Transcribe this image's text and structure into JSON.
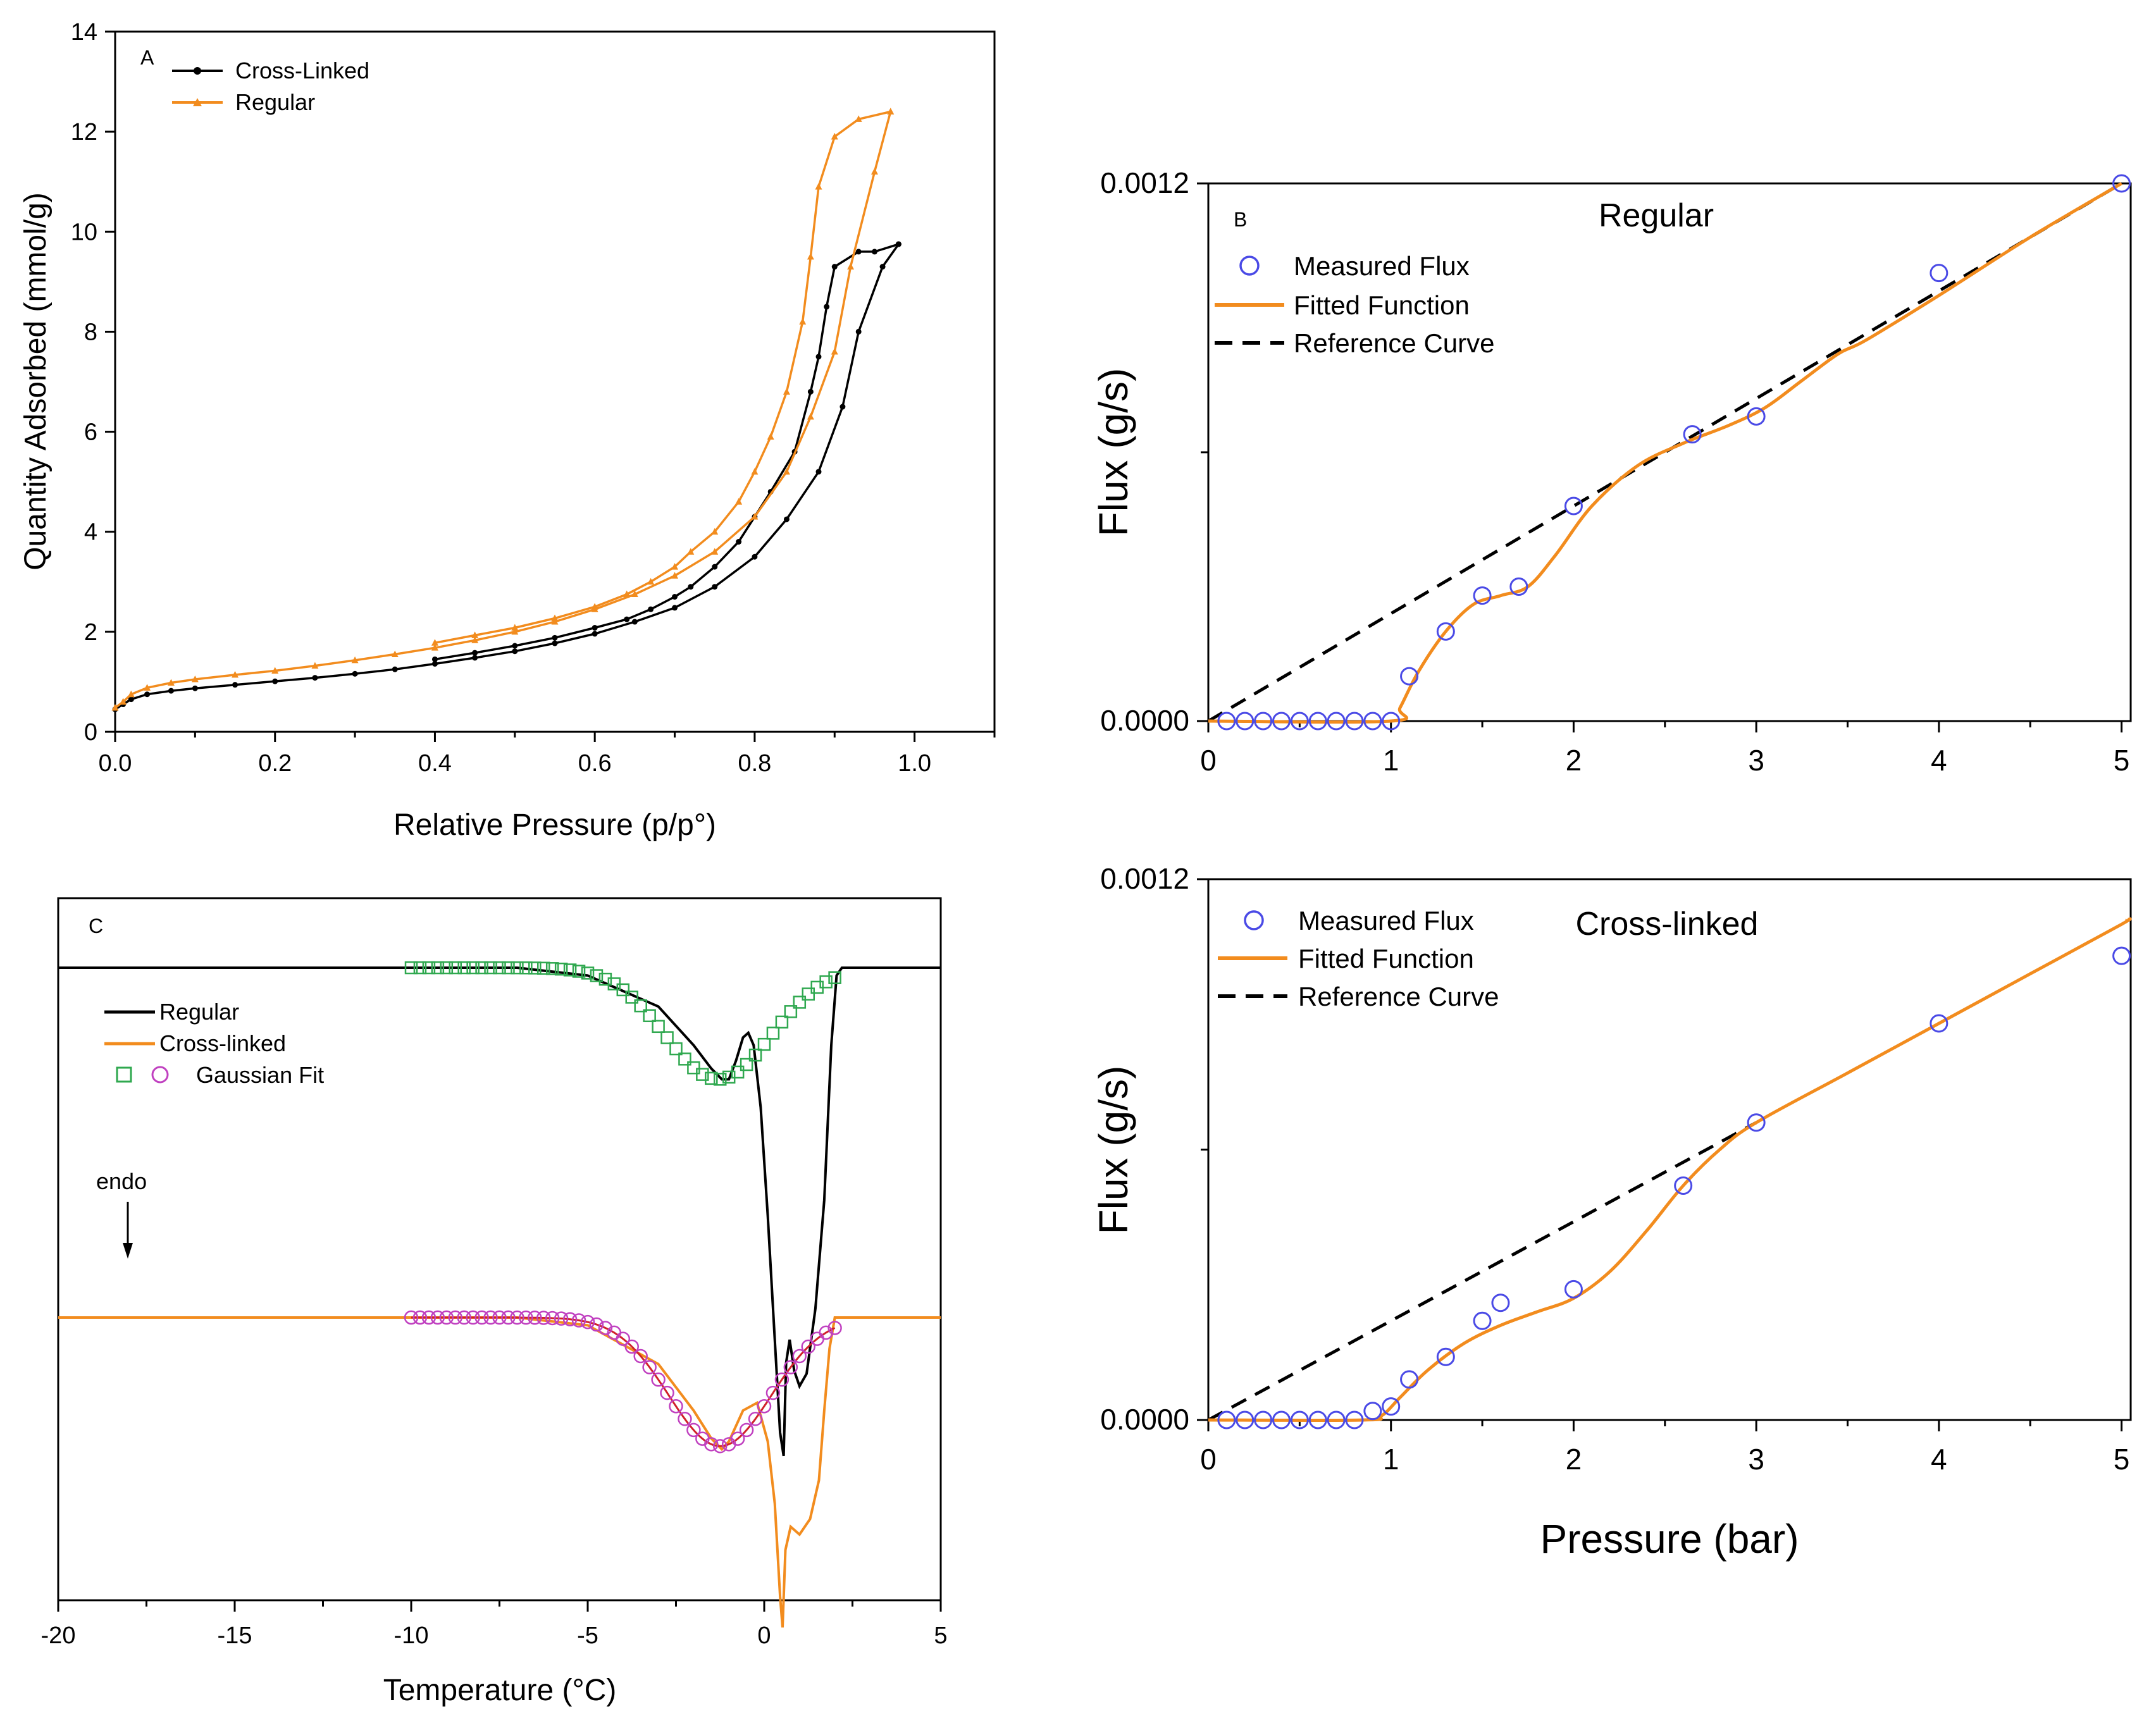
{
  "chart_data": [
    {
      "panel": "A",
      "type": "line",
      "xlabel": "Relative Pressure (p/p°)",
      "ylabel": "Quantity Adsorbed (mmol/g)",
      "xlim": [
        0,
        1.1
      ],
      "ylim": [
        0,
        14
      ],
      "xticks": [
        "0.0",
        "0.2",
        "0.4",
        "0.6",
        "0.8",
        "1.0"
      ],
      "yticks": [
        "0",
        "2",
        "4",
        "6",
        "8",
        "10",
        "12",
        "14"
      ],
      "legend": [
        "Cross-Linked",
        "Regular"
      ],
      "colors": {
        "Cross-Linked": "#000000",
        "Regular": "#f28c1e"
      },
      "series": [
        {
          "name": "Cross-Linked",
          "adsorption": [
            [
              0.0,
              0.45
            ],
            [
              0.01,
              0.55
            ],
            [
              0.02,
              0.65
            ],
            [
              0.04,
              0.75
            ],
            [
              0.07,
              0.82
            ],
            [
              0.1,
              0.87
            ],
            [
              0.15,
              0.94
            ],
            [
              0.2,
              1.01
            ],
            [
              0.25,
              1.08
            ],
            [
              0.3,
              1.16
            ],
            [
              0.35,
              1.25
            ],
            [
              0.4,
              1.36
            ],
            [
              0.45,
              1.48
            ],
            [
              0.5,
              1.61
            ],
            [
              0.55,
              1.77
            ],
            [
              0.6,
              1.96
            ],
            [
              0.65,
              2.2
            ],
            [
              0.7,
              2.48
            ],
            [
              0.75,
              2.9
            ],
            [
              0.8,
              3.5
            ],
            [
              0.84,
              4.25
            ],
            [
              0.88,
              5.2
            ],
            [
              0.91,
              6.5
            ],
            [
              0.93,
              8.0
            ],
            [
              0.96,
              9.3
            ],
            [
              0.98,
              9.75
            ]
          ],
          "desorption": [
            [
              0.98,
              9.75
            ],
            [
              0.95,
              9.6
            ],
            [
              0.93,
              9.6
            ],
            [
              0.9,
              9.3
            ],
            [
              0.89,
              8.5
            ],
            [
              0.88,
              7.5
            ],
            [
              0.87,
              6.8
            ],
            [
              0.85,
              5.6
            ],
            [
              0.82,
              4.8
            ],
            [
              0.8,
              4.3
            ],
            [
              0.78,
              3.8
            ],
            [
              0.75,
              3.3
            ],
            [
              0.72,
              2.9
            ],
            [
              0.7,
              2.7
            ],
            [
              0.67,
              2.45
            ],
            [
              0.64,
              2.25
            ],
            [
              0.6,
              2.08
            ],
            [
              0.55,
              1.88
            ],
            [
              0.5,
              1.72
            ],
            [
              0.45,
              1.58
            ],
            [
              0.4,
              1.45
            ]
          ]
        },
        {
          "name": "Regular",
          "adsorption": [
            [
              0.0,
              0.48
            ],
            [
              0.01,
              0.6
            ],
            [
              0.02,
              0.75
            ],
            [
              0.04,
              0.88
            ],
            [
              0.07,
              0.98
            ],
            [
              0.1,
              1.05
            ],
            [
              0.15,
              1.14
            ],
            [
              0.2,
              1.22
            ],
            [
              0.25,
              1.32
            ],
            [
              0.3,
              1.43
            ],
            [
              0.35,
              1.55
            ],
            [
              0.4,
              1.68
            ],
            [
              0.45,
              1.83
            ],
            [
              0.5,
              2.0
            ],
            [
              0.55,
              2.2
            ],
            [
              0.6,
              2.45
            ],
            [
              0.65,
              2.75
            ],
            [
              0.7,
              3.12
            ],
            [
              0.75,
              3.6
            ],
            [
              0.8,
              4.3
            ],
            [
              0.84,
              5.2
            ],
            [
              0.87,
              6.3
            ],
            [
              0.9,
              7.6
            ],
            [
              0.92,
              9.3
            ],
            [
              0.95,
              11.2
            ],
            [
              0.97,
              12.4
            ]
          ],
          "desorption": [
            [
              0.97,
              12.4
            ],
            [
              0.93,
              12.25
            ],
            [
              0.9,
              11.9
            ],
            [
              0.88,
              10.9
            ],
            [
              0.87,
              9.5
            ],
            [
              0.86,
              8.2
            ],
            [
              0.84,
              6.8
            ],
            [
              0.82,
              5.9
            ],
            [
              0.8,
              5.2
            ],
            [
              0.78,
              4.6
            ],
            [
              0.75,
              4.0
            ],
            [
              0.72,
              3.6
            ],
            [
              0.7,
              3.3
            ],
            [
              0.67,
              3.0
            ],
            [
              0.64,
              2.75
            ],
            [
              0.6,
              2.5
            ],
            [
              0.55,
              2.27
            ],
            [
              0.5,
              2.08
            ],
            [
              0.45,
              1.93
            ],
            [
              0.4,
              1.78
            ]
          ]
        }
      ]
    },
    {
      "panel": "B",
      "type": "scatter",
      "title": "Regular",
      "xlabel": "",
      "ylabel": "Flux (g/s)",
      "xlim": [
        0,
        5.05
      ],
      "ylim": [
        0,
        0.0012
      ],
      "xticks": [
        "0",
        "1",
        "2",
        "3",
        "4",
        "5"
      ],
      "yticks": [
        "0.0000",
        "0.0012"
      ],
      "legend": [
        "Measured Flux",
        "Fitted Function",
        "Reference Curve"
      ],
      "colors": {
        "Measured Flux": "#4a4ae6",
        "Fitted Function": "#f28c1e",
        "Reference Curve": "#000000"
      },
      "series": [
        {
          "name": "Measured Flux",
          "points": [
            [
              0.1,
              0
            ],
            [
              0.2,
              0
            ],
            [
              0.3,
              0
            ],
            [
              0.4,
              0
            ],
            [
              0.5,
              0
            ],
            [
              0.6,
              0
            ],
            [
              0.7,
              0
            ],
            [
              0.8,
              0
            ],
            [
              0.9,
              0
            ],
            [
              1.0,
              0
            ],
            [
              1.1,
              0.0001
            ],
            [
              1.3,
              0.0002
            ],
            [
              1.5,
              0.00028
            ],
            [
              1.7,
              0.0003
            ],
            [
              2.0,
              0.00048
            ],
            [
              2.65,
              0.00064
            ],
            [
              3.0,
              0.00068
            ],
            [
              4.0,
              0.001
            ],
            [
              5.0,
              0.0012
            ]
          ]
        },
        {
          "name": "Fitted Function",
          "points": [
            [
              0,
              0
            ],
            [
              1.0,
              0
            ],
            [
              1.05,
              3e-05
            ],
            [
              1.15,
              0.00011
            ],
            [
              1.3,
              0.0002
            ],
            [
              1.45,
              0.00026
            ],
            [
              1.6,
              0.00028
            ],
            [
              1.75,
              0.0003
            ],
            [
              1.9,
              0.00037
            ],
            [
              2.1,
              0.00048
            ],
            [
              2.35,
              0.00057
            ],
            [
              2.6,
              0.00062
            ],
            [
              2.85,
              0.00066
            ],
            [
              3.05,
              0.0007
            ],
            [
              3.25,
              0.00076
            ],
            [
              3.45,
              0.00082
            ],
            [
              3.6,
              0.00085
            ],
            [
              4.0,
              0.00095
            ],
            [
              4.5,
              0.00108
            ],
            [
              5.0,
              0.0012
            ]
          ]
        },
        {
          "name": "Reference Curve",
          "points": [
            [
              0,
              0
            ],
            [
              5.0,
              0.0012
            ]
          ]
        }
      ]
    },
    {
      "panel": "",
      "type": "scatter",
      "title": "Cross-linked",
      "xlabel": "Pressure (bar)",
      "ylabel": "Flux (g/s)",
      "xlim": [
        0,
        5.05
      ],
      "ylim": [
        0,
        0.0012
      ],
      "xticks": [
        "0",
        "1",
        "2",
        "3",
        "4",
        "5"
      ],
      "yticks": [
        "0.0000",
        "0.0012"
      ],
      "legend": [
        "Measured Flux",
        "Fitted Function",
        "Reference Curve"
      ],
      "colors": {
        "Measured Flux": "#4a4ae6",
        "Fitted Function": "#f28c1e",
        "Reference Curve": "#000000"
      },
      "series": [
        {
          "name": "Measured Flux",
          "points": [
            [
              0.1,
              0
            ],
            [
              0.2,
              0
            ],
            [
              0.3,
              0
            ],
            [
              0.4,
              0
            ],
            [
              0.5,
              0
            ],
            [
              0.6,
              0
            ],
            [
              0.7,
              0
            ],
            [
              0.8,
              0
            ],
            [
              0.9,
              2e-05
            ],
            [
              1.0,
              3e-05
            ],
            [
              1.1,
              9e-05
            ],
            [
              1.3,
              0.00014
            ],
            [
              1.5,
              0.00022
            ],
            [
              1.6,
              0.00026
            ],
            [
              2.0,
              0.00029
            ],
            [
              2.6,
              0.00052
            ],
            [
              3.0,
              0.00066
            ],
            [
              4.0,
              0.00088
            ],
            [
              5.0,
              0.00103
            ]
          ]
        },
        {
          "name": "Fitted Function",
          "points": [
            [
              0,
              0
            ],
            [
              0.85,
              0
            ],
            [
              0.95,
              1e-05
            ],
            [
              1.05,
              5e-05
            ],
            [
              1.2,
              0.00011
            ],
            [
              1.4,
              0.00017
            ],
            [
              1.6,
              0.00021
            ],
            [
              1.8,
              0.00024
            ],
            [
              2.0,
              0.00027
            ],
            [
              2.2,
              0.00033
            ],
            [
              2.4,
              0.00042
            ],
            [
              2.6,
              0.00052
            ],
            [
              2.8,
              0.0006
            ],
            [
              3.0,
              0.00066
            ],
            [
              3.5,
              0.00077
            ],
            [
              4.0,
              0.00088
            ],
            [
              4.5,
              0.00099
            ],
            [
              5.0,
              0.0011
            ],
            [
              5.03,
              0.00111
            ]
          ]
        },
        {
          "name": "Reference Curve",
          "points": [
            [
              0,
              0
            ],
            [
              3.0,
              0.00066
            ]
          ]
        }
      ]
    },
    {
      "panel": "C",
      "type": "line",
      "xlabel": "Temperature (°C)",
      "ylabel": "",
      "xlim": [
        -20,
        5
      ],
      "xticks": [
        "-20",
        "-15",
        "-10",
        "-5",
        "0",
        "5"
      ],
      "legend": [
        "Regular",
        "Cross-linked",
        "Gaussian Fit"
      ],
      "annotation": "endo",
      "colors": {
        "Regular": "#000000",
        "Cross-linked": "#f28c1e",
        "Gaussian Fit A": "#2fa84f",
        "Gaussian Fit B": "#c040c0",
        "Gaussian Fit B line": "#d0202a"
      },
      "series": [
        {
          "name": "Regular",
          "baseline": 0,
          "points": [
            [
              -20,
              0
            ],
            [
              -7,
              0
            ],
            [
              -5,
              -0.05
            ],
            [
              -3,
              -0.25
            ],
            [
              -2,
              -0.5
            ],
            [
              -1.5,
              -0.65
            ],
            [
              -1.2,
              -0.72
            ],
            [
              -1.0,
              -0.72
            ],
            [
              -0.8,
              -0.6
            ],
            [
              -0.6,
              -0.45
            ],
            [
              -0.45,
              -0.42
            ],
            [
              -0.3,
              -0.5
            ],
            [
              -0.1,
              -0.9
            ],
            [
              0.1,
              -1.6
            ],
            [
              0.3,
              -2.4
            ],
            [
              0.45,
              -3.0
            ],
            [
              0.55,
              -3.15
            ],
            [
              0.62,
              -2.55
            ],
            [
              0.72,
              -2.4
            ],
            [
              0.85,
              -2.6
            ],
            [
              1.0,
              -2.7
            ],
            [
              1.2,
              -2.62
            ],
            [
              1.45,
              -2.2
            ],
            [
              1.7,
              -1.5
            ],
            [
              1.9,
              -0.5
            ],
            [
              2.05,
              -0.05
            ],
            [
              2.2,
              0
            ],
            [
              5,
              0
            ]
          ]
        },
        {
          "name": "Gaussian Fit A",
          "center": -1.3,
          "depth": -0.72,
          "sigma": 1.5,
          "range": [
            -10,
            2
          ]
        },
        {
          "name": "Cross-linked",
          "baseline": 0,
          "points": [
            [
              -20,
              0
            ],
            [
              -7,
              0
            ],
            [
              -5,
              -0.05
            ],
            [
              -3,
              -0.3
            ],
            [
              -2,
              -0.6
            ],
            [
              -1.5,
              -0.78
            ],
            [
              -1.2,
              -0.85
            ],
            [
              -1.0,
              -0.8
            ],
            [
              -0.6,
              -0.6
            ],
            [
              -0.2,
              -0.55
            ],
            [
              0.1,
              -0.8
            ],
            [
              0.3,
              -1.2
            ],
            [
              0.45,
              -1.8
            ],
            [
              0.52,
              -2.0
            ],
            [
              0.6,
              -1.5
            ],
            [
              0.75,
              -1.35
            ],
            [
              1.0,
              -1.4
            ],
            [
              1.3,
              -1.3
            ],
            [
              1.55,
              -1.05
            ],
            [
              1.7,
              -0.6
            ],
            [
              1.85,
              -0.2
            ],
            [
              2.0,
              0
            ],
            [
              5,
              0
            ]
          ]
        },
        {
          "name": "Gaussian Fit B",
          "center": -1.25,
          "depth": -0.83,
          "sigma": 1.45,
          "range": [
            -10,
            2
          ]
        }
      ]
    }
  ]
}
